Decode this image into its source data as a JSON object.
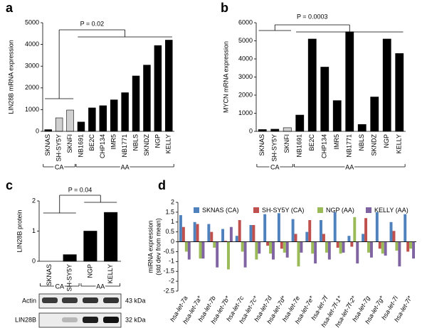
{
  "chart_data": [
    {
      "panel": "a",
      "type": "bar",
      "ylabel": "LIN28B mRNA expression",
      "categories": [
        "SKNAS",
        "SH-SY5Y",
        "SKNFI",
        "NB1691",
        "BE2C",
        "CHP134",
        "IMR5",
        "NB1771",
        "NBLS",
        "SKNDZ",
        "NGP",
        "KELLY"
      ],
      "values": [
        80,
        620,
        980,
        430,
        1080,
        1180,
        1450,
        1780,
        2550,
        3050,
        3950,
        4200
      ],
      "colors": [
        "#000000",
        "#d0d0d0",
        "#d0d0d0",
        "#000000",
        "#000000",
        "#000000",
        "#000000",
        "#000000",
        "#000000",
        "#000000",
        "#000000",
        "#000000"
      ],
      "ylim": [
        0,
        5000
      ],
      "yticks": [
        0,
        1000,
        2000,
        3000,
        4000,
        5000
      ],
      "annotation": "P = 0.02",
      "groups": [
        "CA",
        "AA"
      ]
    },
    {
      "panel": "b",
      "type": "bar",
      "ylabel": "MYCN mRNA expression",
      "categories": [
        "SKNAS",
        "SH-SY5Y",
        "SKNFI",
        "NB1691",
        "BE2C",
        "CHP134",
        "IMR5",
        "NB1771",
        "NBLS",
        "SKNDZ",
        "NGP",
        "KELLY"
      ],
      "values": [
        100,
        120,
        200,
        900,
        5100,
        3550,
        1700,
        5500,
        380,
        1900,
        5100,
        4300
      ],
      "colors": [
        "#000000",
        "#000000",
        "#d0d0d0",
        "#000000",
        "#000000",
        "#000000",
        "#000000",
        "#000000",
        "#000000",
        "#000000",
        "#000000",
        "#000000"
      ],
      "ylim": [
        0,
        6000
      ],
      "yticks": [
        0,
        1000,
        2000,
        3000,
        4000,
        5000,
        6000
      ],
      "annotation": "P = 0.0003",
      "groups": [
        "CA",
        "AA"
      ]
    },
    {
      "panel": "c",
      "type": "bar",
      "ylabel": "LIN28B protein",
      "categories": [
        "SKNAS",
        "SH-SY5Y",
        "NGP",
        "KELLY"
      ],
      "values": [
        0,
        0.22,
        1.0,
        1.62
      ],
      "colors": [
        "#000000",
        "#000000",
        "#000000",
        "#000000"
      ],
      "ylim": [
        0,
        2
      ],
      "yticks": [
        0,
        1,
        2
      ],
      "annotation": "P = 0.04",
      "groups": [
        "CA",
        "AA"
      ],
      "blot": {
        "rows": [
          {
            "label": "Actin",
            "size": "43 kDa"
          },
          {
            "label": "LIN28B",
            "size": "32 kDa"
          }
        ]
      }
    },
    {
      "panel": "d",
      "type": "grouped_bar",
      "ylabel": [
        "miRNA expression",
        "(std dev from mean)"
      ],
      "categories": [
        "hsa-let-7a",
        "hsa-let-7a*",
        "hsa-let-7b",
        "hsa-let-7b*",
        "hsa-let-7c",
        "hsa-let-7c*",
        "hsa-let-7d",
        "hsa-let-7d*",
        "hsa-let-7e",
        "hsa-let-7e*",
        "hsa-let-7f",
        "hsa-let-7f-1*",
        "hsa-let-7f-2*",
        "hsa-let-7g",
        "hsa-let-7g*",
        "hsa-let-7i",
        "hsa-let-7i*"
      ],
      "series": [
        {
          "name": "SKNAS (CA)",
          "color": "#4f81bd",
          "values": [
            1.35,
            1.0,
            0.9,
            0.65,
            0.3,
            0.85,
            1.4,
            1.45,
            1.15,
            0.5,
            1.1,
            1.5,
            0.3,
            0.4,
            1.5,
            1.0,
            1.4
          ]
        },
        {
          "name": "SH-SY5Y (CA)",
          "color": "#c0504d",
          "values": [
            0.75,
            0.9,
            0.5,
            0.05,
            1.1,
            0.85,
            -0.2,
            -0.35,
            0.4,
            1.1,
            0.4,
            -0.3,
            -0.25,
            1.2,
            -0.35,
            0.55,
            -0.5
          ]
        },
        {
          "name": "NGP (AA)",
          "color": "#9bbb59",
          "values": [
            -0.5,
            -0.85,
            -0.3,
            -1.4,
            -0.5,
            -0.9,
            -0.6,
            -0.55,
            -1.25,
            -0.6,
            -0.55,
            -0.6,
            1.25,
            -0.55,
            -0.6,
            -0.45,
            -0.35
          ]
        },
        {
          "name": "KELLY (AA)",
          "color": "#8064a2",
          "values": [
            -0.9,
            -0.85,
            -1.3,
            0.75,
            -1.3,
            -0.6,
            -0.9,
            -0.8,
            -0.55,
            -1.1,
            -0.9,
            -0.55,
            -1.1,
            -0.8,
            -0.7,
            -1.25,
            -0.85
          ]
        }
      ],
      "ylim": [
        -2.5,
        2
      ],
      "yticks": [
        -2.5,
        -2,
        -1.5,
        -1,
        -0.5,
        0,
        0.5,
        1,
        1.5,
        2
      ]
    }
  ]
}
